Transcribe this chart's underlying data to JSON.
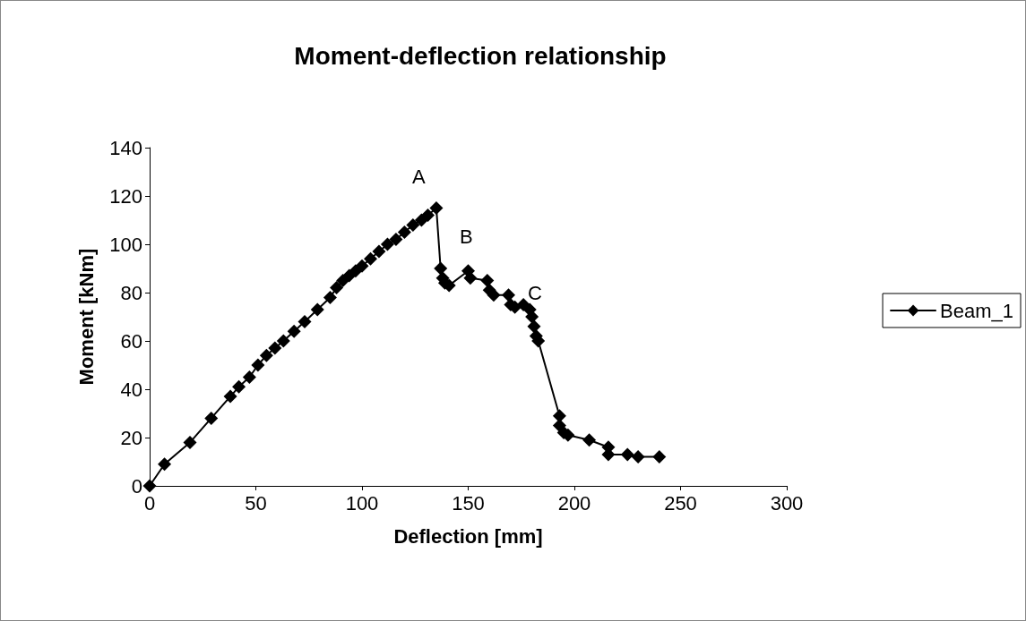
{
  "chart_data": {
    "type": "line",
    "title": "Moment-deflection relationship",
    "xlabel": "Deflection [mm]",
    "ylabel": "Moment [kNm]",
    "xlim": [
      0,
      300
    ],
    "xticks": [
      0,
      50,
      100,
      150,
      200,
      250,
      300
    ],
    "ylim": [
      0,
      140
    ],
    "yticks": [
      0,
      20,
      40,
      60,
      80,
      100,
      120,
      140
    ],
    "grid": false,
    "legend": "right",
    "marker": "diamond",
    "line_style": "solid",
    "annotations": [
      "A",
      "B",
      "C"
    ],
    "series": [
      {
        "name": "Beam_1",
        "color": "#000000",
        "x": [
          0,
          7,
          19,
          29,
          38,
          42,
          47,
          51,
          55,
          59,
          63,
          68,
          73,
          79,
          85,
          88,
          91,
          94,
          97,
          100,
          104,
          108,
          112,
          116,
          120,
          124,
          128,
          131,
          135,
          137,
          138,
          139,
          141,
          150,
          151,
          159,
          160,
          162,
          169,
          170,
          172,
          176,
          179,
          180,
          181,
          182,
          183,
          193,
          193,
          195,
          197,
          207,
          216,
          216,
          225,
          230,
          240
        ],
        "values": [
          0,
          9,
          18,
          28,
          37,
          41,
          45,
          50,
          54,
          57,
          60,
          64,
          68,
          73,
          78,
          82,
          85,
          87,
          89,
          91,
          94,
          97,
          100,
          102,
          105,
          108,
          110,
          112,
          115,
          90,
          86,
          84,
          83,
          89,
          86,
          85,
          81,
          79,
          79,
          75,
          74,
          75,
          73,
          70,
          66,
          62,
          60,
          29,
          25,
          22,
          21,
          19,
          16,
          13,
          13,
          12,
          12
        ]
      }
    ]
  }
}
